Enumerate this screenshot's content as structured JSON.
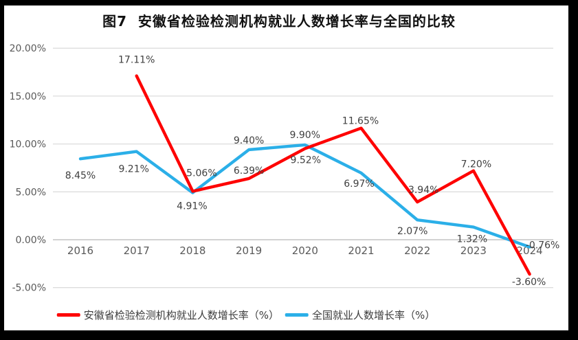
{
  "title": "图7  安徽省检验检测机构就业人数增长率与全国的比较",
  "colors": {
    "anhui_series": "#fe0000",
    "national_series": "#2bafe8",
    "grid": "#dcdcdc",
    "zero_axis": "#c3c3c3",
    "axis_text": "#595959",
    "data_label_text": "#3f3f3f",
    "page_background": "#000000",
    "chart_background": "#ffffff"
  },
  "chart_data": {
    "type": "line",
    "title": "图7  安徽省检验检测机构就业人数增长率与全国的比较",
    "categories": [
      "2016",
      "2017",
      "2018",
      "2019",
      "2020",
      "2021",
      "2022",
      "2023",
      "2024"
    ],
    "yticks": [
      {
        "label": "20.00%",
        "value": 20
      },
      {
        "label": "15.00%",
        "value": 15
      },
      {
        "label": "10.00%",
        "value": 10
      },
      {
        "label": "5.00%",
        "value": 5
      },
      {
        "label": "0.00%",
        "value": 0
      },
      {
        "label": "-5.00%",
        "value": -5
      }
    ],
    "ylim": [
      -5,
      20
    ],
    "grid": true,
    "legend_position": "bottom",
    "series": [
      {
        "name": "安徽省检验检测机构就业人数增长率（%）",
        "color": "#fe0000",
        "points": [
          {
            "category": "2017",
            "value": 17.11,
            "label": "17.11%",
            "label_dx": 0,
            "label_dy": -24
          },
          {
            "category": "2018",
            "value": 5.06,
            "label": "5.06%",
            "label_dx": 13,
            "label_dy": -27
          },
          {
            "category": "2019",
            "value": 6.39,
            "label": "6.39%",
            "label_dx": 0,
            "label_dy": -12
          },
          {
            "category": "2020",
            "value": 9.52,
            "label": "9.52%",
            "label_dx": 1,
            "label_dy": 16
          },
          {
            "category": "2021",
            "value": 11.65,
            "label": "11.65%",
            "label_dx": -1,
            "label_dy": -11
          },
          {
            "category": "2022",
            "value": 3.94,
            "label": "3.94%",
            "label_dx": 9,
            "label_dy": -18
          },
          {
            "category": "2023",
            "value": 7.2,
            "label": "7.20%",
            "label_dx": 4,
            "label_dy": -10
          },
          {
            "category": "2024",
            "value": -3.6,
            "label": "-3.60%",
            "label_dx": -1,
            "label_dy": 11
          }
        ]
      },
      {
        "name": "全国就业人数增长率（%）",
        "color": "#2bafe8",
        "points": [
          {
            "category": "2016",
            "value": 8.45,
            "label": "8.45%",
            "label_dx": 0,
            "label_dy": 24
          },
          {
            "category": "2017",
            "value": 9.21,
            "label": "9.21%",
            "label_dx": -4,
            "label_dy": 25
          },
          {
            "category": "2018",
            "value": 4.91,
            "label": "4.91%",
            "label_dx": -1,
            "label_dy": 19
          },
          {
            "category": "2019",
            "value": 9.4,
            "label": "9.40%",
            "label_dx": 0,
            "label_dy": -14
          },
          {
            "category": "2020",
            "value": 9.9,
            "label": "9.90%",
            "label_dx": 0,
            "label_dy": -15
          },
          {
            "category": "2021",
            "value": 6.97,
            "label": "6.97%",
            "label_dx": -3,
            "label_dy": 15
          },
          {
            "category": "2022",
            "value": 2.07,
            "label": "2.07%",
            "label_dx": -7,
            "label_dy": 16
          },
          {
            "category": "2023",
            "value": 1.32,
            "label": "1.32%",
            "label_dx": -2,
            "label_dy": 17
          },
          {
            "category": "2024",
            "value": -0.76,
            "label": "-0.76%",
            "label_dx": 19,
            "label_dy": -3
          }
        ]
      }
    ]
  }
}
